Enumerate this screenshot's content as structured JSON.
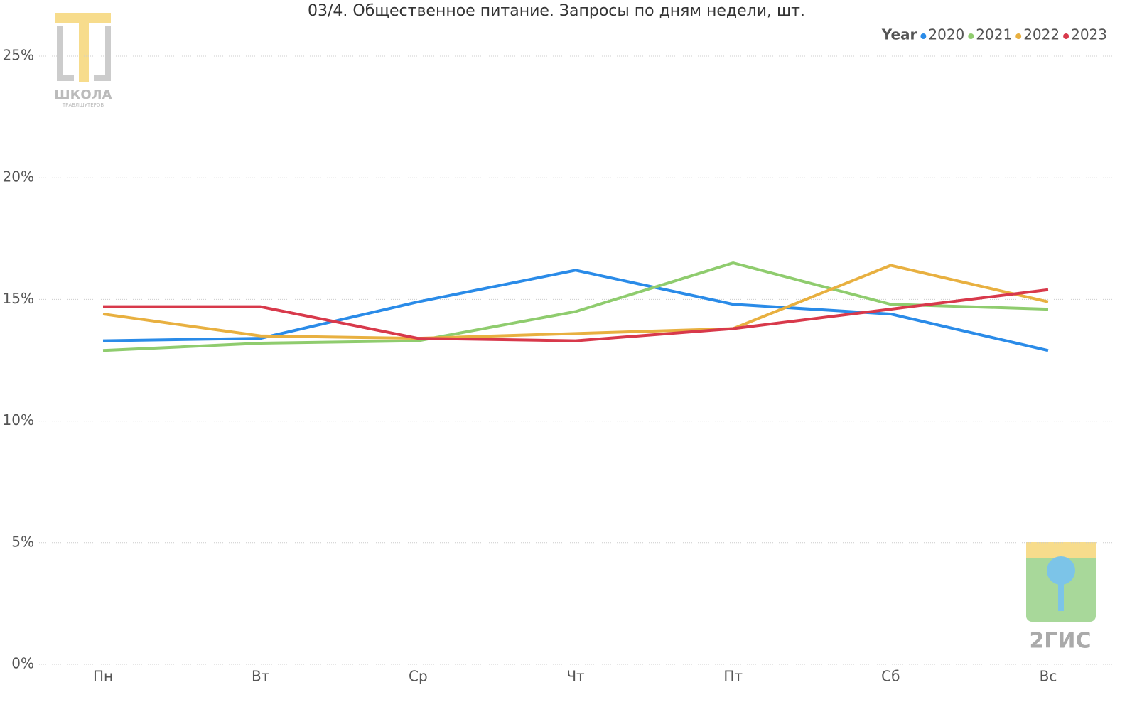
{
  "chart_data": {
    "type": "line",
    "title": "03/4. Общественное питание. Запросы по дням недели, шт.",
    "legend_title": "Year",
    "legend_position": "top-right",
    "categories": [
      "Пн",
      "Вт",
      "Ср",
      "Чт",
      "Пт",
      "Сб",
      "Вс"
    ],
    "series": [
      {
        "name": "2020",
        "color": "#2a8be8",
        "values": [
          13.3,
          13.4,
          14.9,
          16.2,
          14.8,
          14.4,
          12.9
        ]
      },
      {
        "name": "2021",
        "color": "#8fcc6e",
        "values": [
          12.9,
          13.2,
          13.3,
          14.5,
          16.5,
          14.8,
          14.6
        ]
      },
      {
        "name": "2022",
        "color": "#e8b040",
        "values": [
          14.4,
          13.5,
          13.4,
          13.6,
          13.8,
          16.4,
          14.9
        ]
      },
      {
        "name": "2023",
        "color": "#d8394b",
        "values": [
          14.7,
          14.7,
          13.4,
          13.3,
          13.8,
          14.6,
          15.4
        ]
      }
    ],
    "ylim": [
      0,
      25
    ],
    "yticks": [
      {
        "value": 0,
        "label": "0%"
      },
      {
        "value": 5,
        "label": "5%"
      },
      {
        "value": 10,
        "label": "10%"
      },
      {
        "value": 15,
        "label": "15%"
      },
      {
        "value": 20,
        "label": "20%"
      },
      {
        "value": 25,
        "label": "25%"
      }
    ],
    "grid": true
  },
  "logos": {
    "school": "ШКОЛА",
    "school_sub": "ТРАБЛШУТЕРОВ",
    "gis": "2ГИС"
  }
}
